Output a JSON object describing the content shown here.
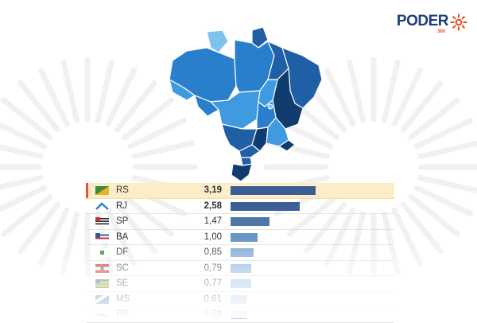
{
  "brand": {
    "name": "PODER",
    "sub": "360",
    "accent": "#e4572e",
    "text_color": "#1f3d7a"
  },
  "chart_data": {
    "type": "bar",
    "orientation": "horizontal",
    "categories": [
      "RS",
      "RJ",
      "SP",
      "BA",
      "DF",
      "SC",
      "SE",
      "MS",
      "PR"
    ],
    "values": [
      3.19,
      2.58,
      1.47,
      1.0,
      0.85,
      0.79,
      0.77,
      0.61,
      0.59
    ],
    "value_labels": [
      "3,19",
      "2,58",
      "1,47",
      "1,00",
      "0,85",
      "0,79",
      "0,77",
      "0,61",
      "0,59"
    ],
    "xlim": [
      0,
      3.19
    ],
    "highlight": "RS",
    "highlight_color": "#fcedc8",
    "bar_colors": [
      "#3b5f93",
      "#3d6196",
      "#5077a8",
      "#6a95c6",
      "#7fa9d6",
      "#8ab4dd",
      "#9ec3e6",
      "#aacbea",
      "#b6d3ee"
    ],
    "title": "",
    "xlabel": "",
    "ylabel": "",
    "grid": false,
    "legend": "none"
  },
  "map_colors": {
    "darkest": "#103c6e",
    "dark": "#1f5fa6",
    "mid": "#2a7fcd",
    "light": "#3f9ae0",
    "lightest": "#7cc3ef"
  }
}
